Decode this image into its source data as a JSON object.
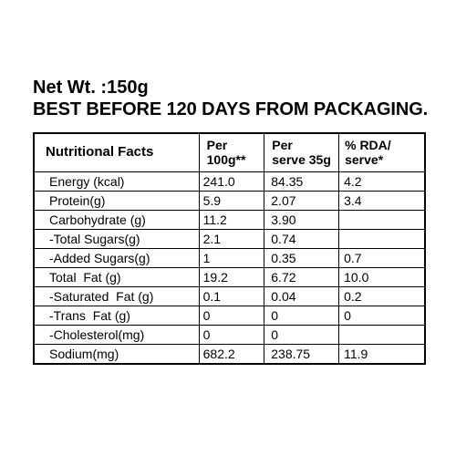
{
  "header": {
    "net_weight": "Net Wt. :150g",
    "best_before": "BEST BEFORE 120 DAYS FROM PACKAGING."
  },
  "table": {
    "columns": {
      "title": "Nutritional Facts",
      "per100_line1": "Per",
      "per100_line2": "100g**",
      "per35_line1": "Per",
      "per35_line2": "serve 35g",
      "rda_line1": "% RDA/",
      "rda_line2": "serve*"
    },
    "rows": [
      {
        "label": "Energy (kcal)",
        "per100": "241.0",
        "per35": "84.35",
        "rda": "4.2"
      },
      {
        "label": "Protein(g)",
        "per100": "5.9",
        "per35": "2.07",
        "rda": "3.4"
      },
      {
        "label": "Carbohydrate (g)",
        "per100": "11.2",
        "per35": "3.90",
        "rda": ""
      },
      {
        "label": "-Total Sugars(g)",
        "per100": "2.1",
        "per35": "0.74",
        "rda": ""
      },
      {
        "label": "-Added Sugars(g)",
        "per100": "1",
        "per35": "0.35",
        "rda": "0.7"
      },
      {
        "label": "Total  Fat (g)",
        "per100": "19.2",
        "per35": "6.72",
        "rda": "10.0"
      },
      {
        "label": "-Saturated  Fat (g)",
        "per100": "0.1",
        "per35": "0.04",
        "rda": "0.2"
      },
      {
        "label": "-Trans  Fat (g)",
        "per100": "0",
        "per35": "0",
        "rda": "0"
      },
      {
        "label": "-Cholesterol(mg)",
        "per100": "0",
        "per35": "0",
        "rda": ""
      },
      {
        "label": "Sodium(mg)",
        "per100": "682.2",
        "per35": "238.75",
        "rda": "11.9"
      }
    ]
  }
}
